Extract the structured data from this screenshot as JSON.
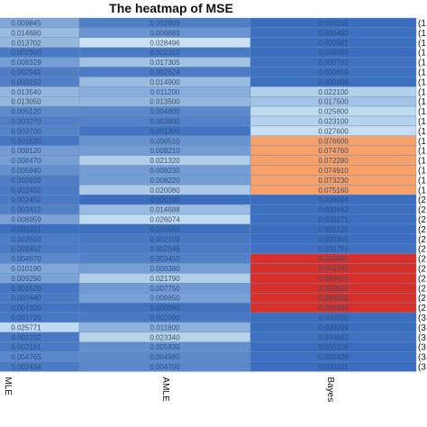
{
  "chart_data": {
    "type": "heatmap",
    "title": "The heatmap of MSE",
    "columns": [
      "MLE",
      "AMLE",
      "Bayes"
    ],
    "rows": [
      {
        "right": "(1",
        "values": [
          "0.009845",
          "0.002909",
          "0.000155"
        ]
      },
      {
        "right": "(1",
        "values": [
          "0.014680",
          "0.006889",
          "0.000490"
        ]
      },
      {
        "right": "(1",
        "values": [
          "0.013702",
          "0.028496",
          "0.000581"
        ]
      },
      {
        "right": "(1",
        "values": [
          "0.002300",
          "0.002310",
          "0.000088"
        ]
      },
      {
        "right": "(1",
        "values": [
          "0.008329",
          "0.017305",
          "0.000782"
        ]
      },
      {
        "right": "(1",
        "values": [
          "0.002949",
          "0.002624",
          "0.000659"
        ]
      },
      {
        "right": "(1",
        "values": [
          "0.003150",
          "0.014900",
          "0.000406"
        ]
      },
      {
        "right": "(1",
        "values": [
          "0.013540",
          "0.011200",
          "0.022100"
        ]
      },
      {
        "right": "(1",
        "values": [
          "0.013050",
          "0.013500",
          "0.017500"
        ]
      },
      {
        "right": "(1",
        "values": [
          "0.005120",
          "0.004800",
          "0.025800"
        ]
      },
      {
        "right": "(1",
        "values": [
          "0.003270",
          "0.003600",
          "0.023100"
        ]
      },
      {
        "right": "(1",
        "values": [
          "0.003700",
          "0.001300",
          "0.027600"
        ]
      },
      {
        "right": "(1",
        "values": [
          "0.001630",
          "0.006510",
          "0.076600"
        ]
      },
      {
        "right": "(1",
        "values": [
          "0.008120",
          "0.008210",
          "0.074760"
        ]
      },
      {
        "right": "(1",
        "values": [
          "0.008470",
          "0.021320",
          "0.072280"
        ]
      },
      {
        "right": "(1",
        "values": [
          "0.005940",
          "0.008230",
          "0.074910"
        ]
      },
      {
        "right": "(1",
        "values": [
          "0.002920",
          "0.008220",
          "0.073230"
        ]
      },
      {
        "right": "(1",
        "values": [
          "0.002450",
          "0.020080",
          "0.075160"
        ]
      },
      {
        "right": "(2",
        "values": [
          "0.002452",
          "0.000190",
          "0.000094"
        ]
      },
      {
        "right": "(2",
        "values": [
          "0.003412",
          "0.014688",
          "0.000443"
        ]
      },
      {
        "right": "(2",
        "values": [
          "0.008959",
          "0.026074",
          "0.000271"
        ]
      },
      {
        "right": "(2",
        "values": [
          "0.000331",
          "0.000550",
          "0.000125"
        ]
      },
      {
        "right": "(2",
        "values": [
          "0.002503",
          "0.002109",
          "0.000305"
        ]
      },
      {
        "right": "(2",
        "values": [
          "0.002452",
          "0.002546",
          "0.000796"
        ]
      },
      {
        "right": "(2",
        "values": [
          "0.004670",
          "0.003450",
          "0.093800"
        ]
      },
      {
        "right": "(2",
        "values": [
          "0.010190",
          "0.008380",
          "0.093760"
        ]
      },
      {
        "right": "(2",
        "values": [
          "0.009290",
          "0.021790",
          "0.093610"
        ]
      },
      {
        "right": "(2",
        "values": [
          "0.001520",
          "0.007750",
          "0.093620"
        ]
      },
      {
        "right": "(2",
        "values": [
          "0.002440",
          "0.008850",
          "0.093820"
        ]
      },
      {
        "right": "(2",
        "values": [
          "0.001320",
          "0.000990",
          "0.093800"
        ]
      },
      {
        "right": "(3",
        "values": [
          "0.001720",
          "0.002090",
          "0.000099"
        ]
      },
      {
        "right": "(3",
        "values": [
          "0.025771",
          "0.011800",
          "0.000099"
        ]
      },
      {
        "right": "(3",
        "values": [
          "0.002202",
          "0.023340",
          "0.000662"
        ]
      },
      {
        "right": "(3",
        "values": [
          "0.002181",
          "0.005830",
          "0.000228"
        ]
      },
      {
        "right": "(3",
        "values": [
          "0.004765",
          "0.004980",
          "0.000428"
        ]
      },
      {
        "right": "(3",
        "values": [
          "0.002434",
          "0.004700",
          "0.000201"
        ]
      }
    ],
    "color_scale": {
      "low": "#3a6dbf",
      "mid_low": "#8fb3dd",
      "pale": "#cfe6f5",
      "orange": "#f7a16a",
      "red": "#d7302a"
    }
  }
}
